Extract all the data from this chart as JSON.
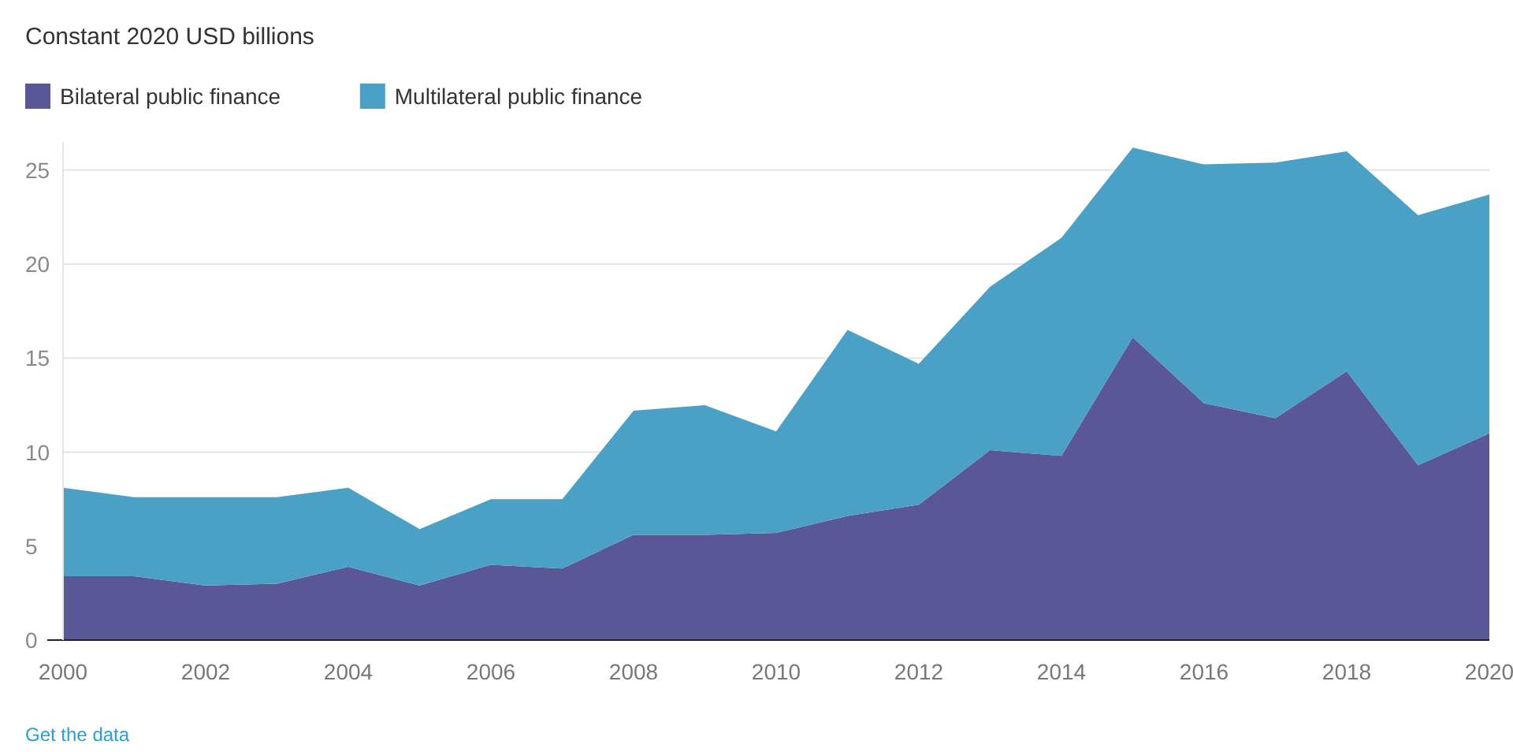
{
  "chart_data": {
    "type": "area",
    "title": "Constant 2020 USD billions",
    "stacked": true,
    "x": [
      2000,
      2001,
      2002,
      2003,
      2004,
      2005,
      2006,
      2007,
      2008,
      2009,
      2010,
      2011,
      2012,
      2013,
      2014,
      2015,
      2016,
      2017,
      2018,
      2019,
      2020
    ],
    "series": [
      {
        "name": "Bilateral public finance",
        "color": "#5a5796",
        "values": [
          3.4,
          3.4,
          2.9,
          3.0,
          3.9,
          2.9,
          4.0,
          3.8,
          5.6,
          5.6,
          5.7,
          6.6,
          7.2,
          10.1,
          9.8,
          16.1,
          12.6,
          11.8,
          14.3,
          9.3,
          11.0
        ]
      },
      {
        "name": "Multilateral public finance",
        "color": "#4aa1c5",
        "values": [
          4.7,
          4.2,
          4.7,
          4.6,
          4.2,
          3.0,
          3.5,
          3.7,
          6.6,
          6.9,
          5.4,
          9.9,
          7.5,
          8.7,
          11.6,
          10.1,
          12.7,
          13.6,
          11.7,
          13.3,
          12.7
        ]
      }
    ],
    "xlim": [
      2000,
      2020
    ],
    "xticks": [
      2000,
      2002,
      2004,
      2006,
      2008,
      2010,
      2012,
      2014,
      2016,
      2018,
      2020
    ],
    "ylim": [
      0,
      26.5
    ],
    "yticks": [
      0,
      5,
      10,
      15,
      20,
      25
    ],
    "grid": "y",
    "legend": "top left",
    "annotations": [
      "Get the data"
    ]
  }
}
